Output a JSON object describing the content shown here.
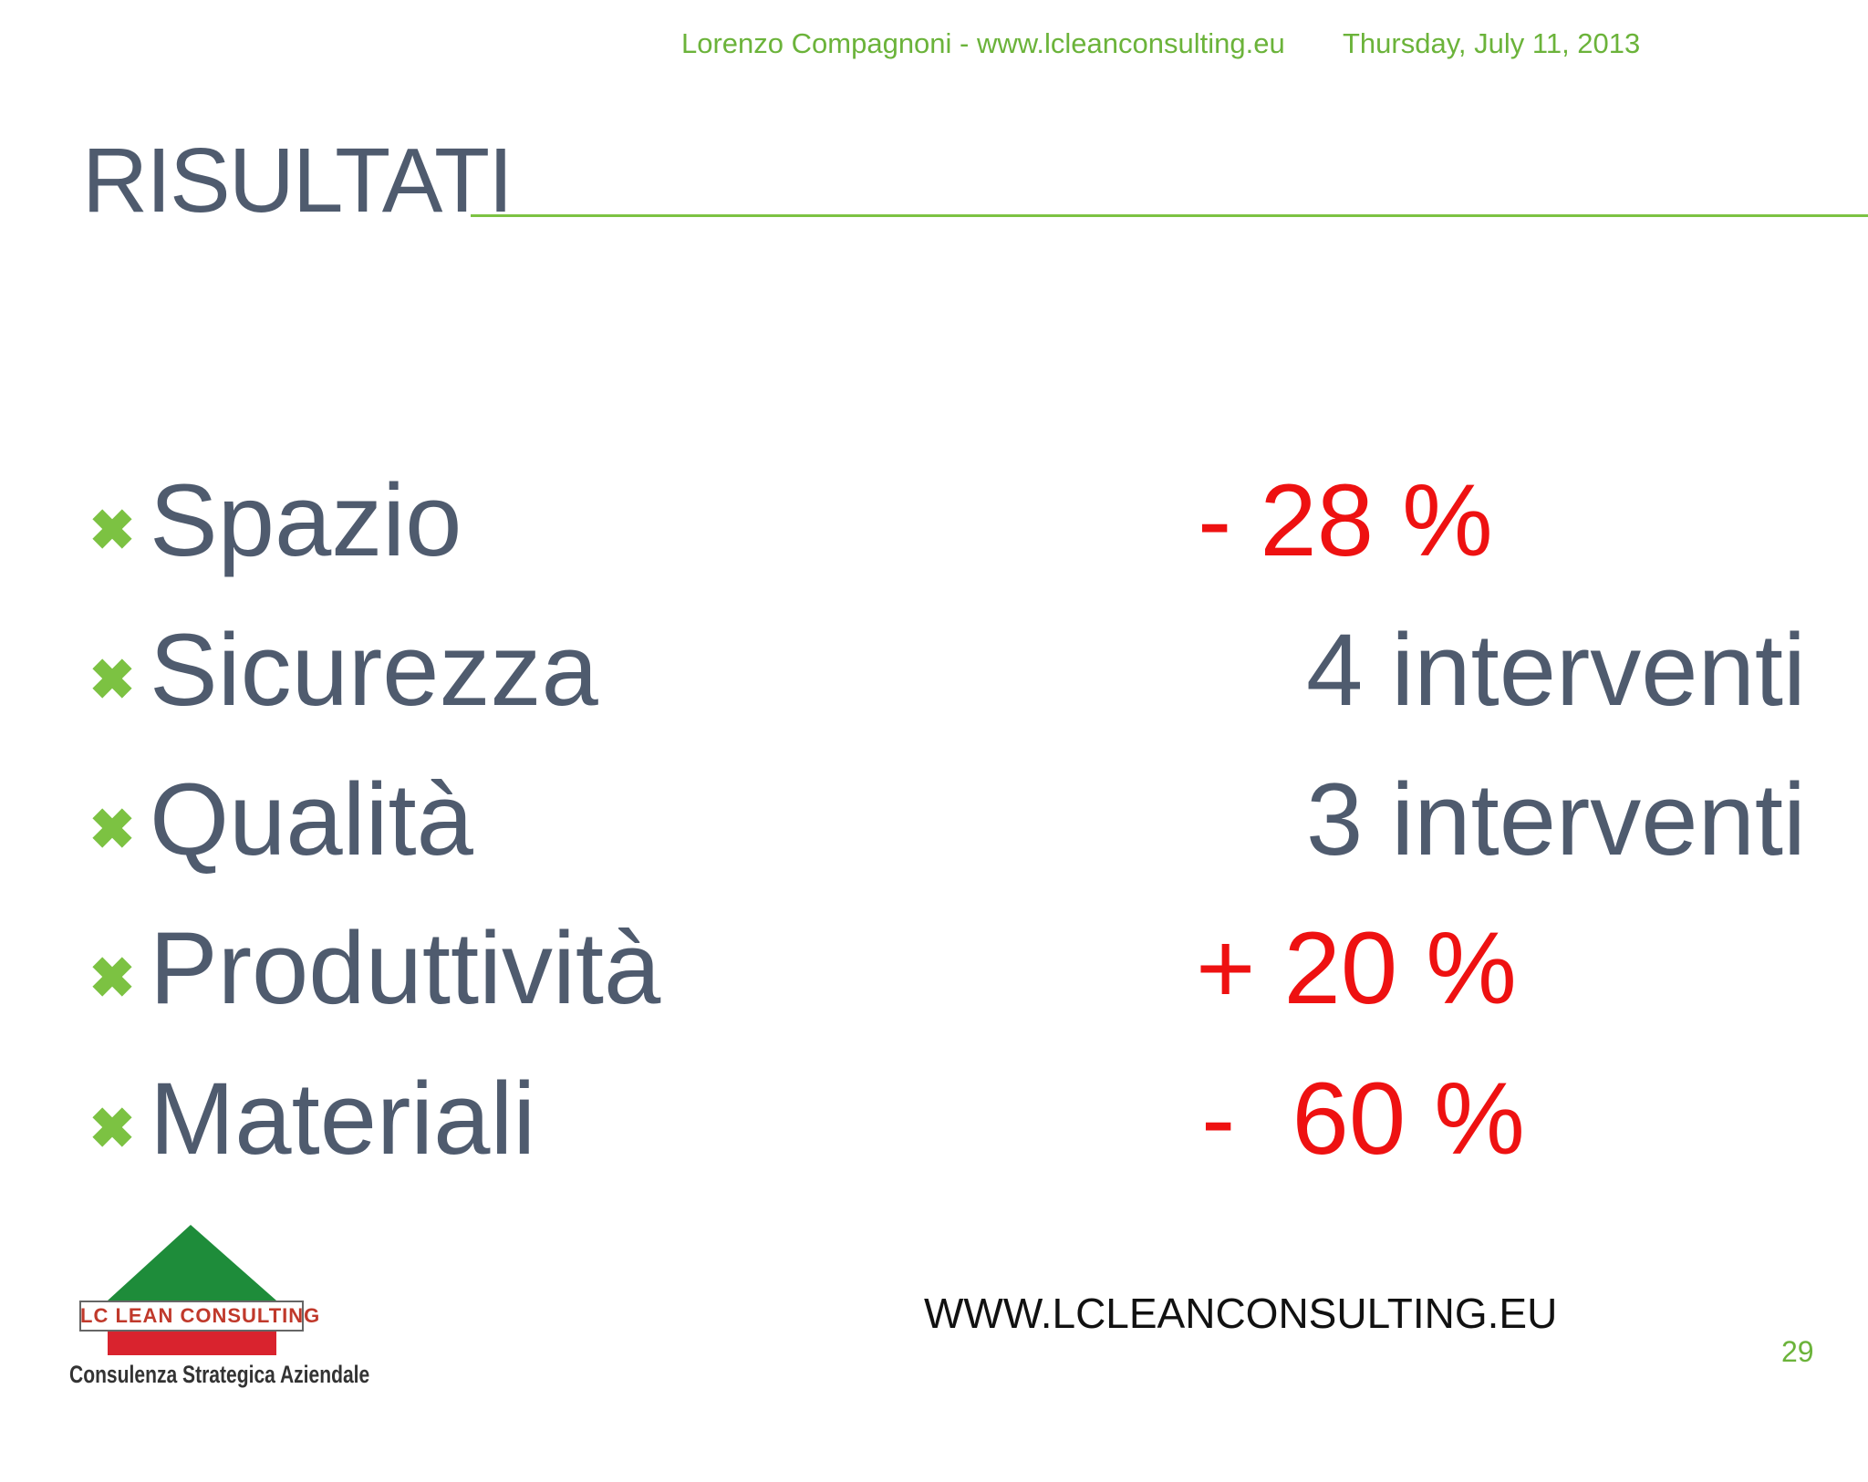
{
  "header": {
    "author": "Lorenzo Compagnoni - www.lcleanconsulting.eu",
    "date": "Thursday, July 11, 2013"
  },
  "title": "RISULTATI",
  "items": [
    {
      "label": "Spazio",
      "result": "- 28 %",
      "color": "#ee1111"
    },
    {
      "label": "Sicurezza",
      "result": "4 interventi",
      "color": "#4f5b6e"
    },
    {
      "label": "Qualità",
      "result": "3 interventi",
      "color": "#4f5b6e"
    },
    {
      "label": "Produttività",
      "result": "+ 20 %",
      "color": "#ee1111"
    },
    {
      "label": "Materiali",
      "result": "-  60 %",
      "color": "#ee1111"
    }
  ],
  "footer": {
    "website": "WWW.LCLEANCONSULTING.EU",
    "page": "29"
  },
  "logo": {
    "name": "LC LEAN CONSULTING",
    "tagline": "Consulenza Strategica Aziendale"
  }
}
